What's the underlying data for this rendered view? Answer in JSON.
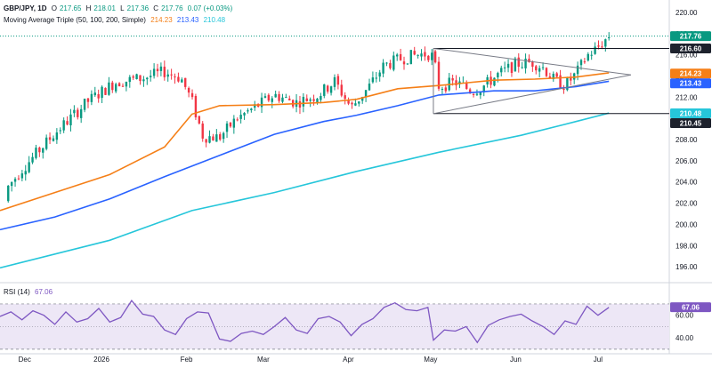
{
  "header": {
    "symbol": "GBP/JPY, 1D",
    "o_label": "O",
    "o_value": "217.65",
    "h_label": "H",
    "h_value": "218.01",
    "l_label": "L",
    "l_value": "217.36",
    "c_label": "C",
    "c_value": "217.76",
    "change": "0.07 (+0.03%)",
    "ma_title": "Moving Average Triple (50, 100, 200, Simple)",
    "ma50": "214.23",
    "ma100": "213.43",
    "ma200": "210.48",
    "rsi_title": "RSI (14)",
    "rsi_value": "67.06"
  },
  "colors": {
    "up": "#089981",
    "down": "#f23645",
    "ma50": "#f57f17",
    "ma100": "#2962ff",
    "ma200": "#26c6da",
    "rsi": "#7e57c2",
    "rsi_band": "#ede7f6",
    "grid": "#d1d4dc",
    "axis_text": "#131722",
    "badge_dark": "#1e222d",
    "price_line": "#089981"
  },
  "chart_data": [
    {
      "type": "candlestick",
      "title": "GBP/JPY, 1D",
      "ylim": [
        194.5,
        221
      ],
      "price_ticks": [
        "196.00",
        "198.00",
        "200.00",
        "202.00",
        "204.00",
        "206.00",
        "208.00",
        "210.00",
        "212.00",
        "214.00",
        "216.00",
        "218.00",
        "220.00"
      ],
      "x_labels": [
        "Dec",
        "2026",
        "Feb",
        "Mar",
        "Apr",
        "May",
        "Jun",
        "Jul"
      ],
      "x_label_days": [
        9,
        37,
        68,
        96,
        127,
        157,
        188,
        218
      ],
      "n_days": 244,
      "candle_count": 174,
      "series": [
        {
          "name": "50",
          "points": [
            [
              0,
              201.3
            ],
            [
              20,
              203.0
            ],
            [
              40,
              204.7
            ],
            [
              60,
              207.3
            ],
            [
              70,
              210.4
            ],
            [
              80,
              211.2
            ],
            [
              100,
              211.3
            ],
            [
              118,
              211.5
            ],
            [
              130,
              211.8
            ],
            [
              145,
              212.8
            ],
            [
              160,
              213.1
            ],
            [
              180,
              213.6
            ],
            [
              195,
              213.7
            ],
            [
              210,
              213.9
            ],
            [
              222,
              214.3
            ]
          ]
        },
        {
          "name": "100",
          "points": [
            [
              0,
              199.5
            ],
            [
              20,
              200.7
            ],
            [
              40,
              202.4
            ],
            [
              60,
              204.5
            ],
            [
              80,
              206.5
            ],
            [
              100,
              208.5
            ],
            [
              118,
              209.7
            ],
            [
              130,
              210.3
            ],
            [
              145,
              211.2
            ],
            [
              160,
              212.2
            ],
            [
              180,
              212.6
            ],
            [
              195,
              212.6
            ],
            [
              210,
              213.0
            ],
            [
              222,
              213.5
            ]
          ]
        },
        {
          "name": "200",
          "points": [
            [
              0,
              195.9
            ],
            [
              40,
              198.5
            ],
            [
              70,
              201.3
            ],
            [
              100,
              203.0
            ],
            [
              130,
              205.0
            ],
            [
              160,
              206.8
            ],
            [
              190,
              208.4
            ],
            [
              210,
              209.7
            ],
            [
              222,
              210.5
            ]
          ]
        }
      ],
      "price_labels": [
        "217.76",
        "216.60",
        "214.23",
        "213.43",
        "210.48",
        "210.45"
      ],
      "horizontal_levels": [
        216.6,
        210.45
      ],
      "triangle": {
        "apex_day": 230,
        "apex_price": 214.1,
        "upper_start": [
          158,
          216.6
        ],
        "lower_start": [
          158,
          210.45
        ]
      },
      "last_close": 217.76
    },
    {
      "type": "line",
      "title": "RSI (14)",
      "ylim": [
        26,
        88
      ],
      "ticks": [
        "40.00",
        "60.00"
      ],
      "band": [
        30,
        70
      ],
      "mid_level": 50,
      "last_value": "67.06",
      "value_label": "67.06",
      "points": [
        [
          0,
          59
        ],
        [
          4,
          63
        ],
        [
          8,
          56
        ],
        [
          12,
          64
        ],
        [
          16,
          60
        ],
        [
          20,
          52
        ],
        [
          24,
          63
        ],
        [
          28,
          54
        ],
        [
          32,
          57
        ],
        [
          36,
          66
        ],
        [
          40,
          54
        ],
        [
          44,
          58
        ],
        [
          48,
          73
        ],
        [
          52,
          61
        ],
        [
          56,
          59
        ],
        [
          60,
          47
        ],
        [
          64,
          43
        ],
        [
          68,
          57
        ],
        [
          72,
          63
        ],
        [
          76,
          62
        ],
        [
          80,
          39
        ],
        [
          84,
          37
        ],
        [
          88,
          44
        ],
        [
          92,
          46
        ],
        [
          96,
          43
        ],
        [
          100,
          50
        ],
        [
          104,
          58
        ],
        [
          108,
          47
        ],
        [
          112,
          44
        ],
        [
          116,
          57
        ],
        [
          120,
          59
        ],
        [
          124,
          54
        ],
        [
          128,
          42
        ],
        [
          132,
          52
        ],
        [
          136,
          57
        ],
        [
          140,
          67
        ],
        [
          144,
          71
        ],
        [
          148,
          65
        ],
        [
          152,
          64
        ],
        [
          156,
          67
        ],
        [
          158,
          38
        ],
        [
          162,
          47
        ],
        [
          166,
          46
        ],
        [
          170,
          50
        ],
        [
          174,
          36
        ],
        [
          178,
          51
        ],
        [
          182,
          56
        ],
        [
          186,
          59
        ],
        [
          190,
          61
        ],
        [
          194,
          55
        ],
        [
          198,
          50
        ],
        [
          202,
          43
        ],
        [
          206,
          55
        ],
        [
          210,
          52
        ],
        [
          214,
          68
        ],
        [
          218,
          60
        ],
        [
          222,
          67
        ]
      ]
    }
  ]
}
